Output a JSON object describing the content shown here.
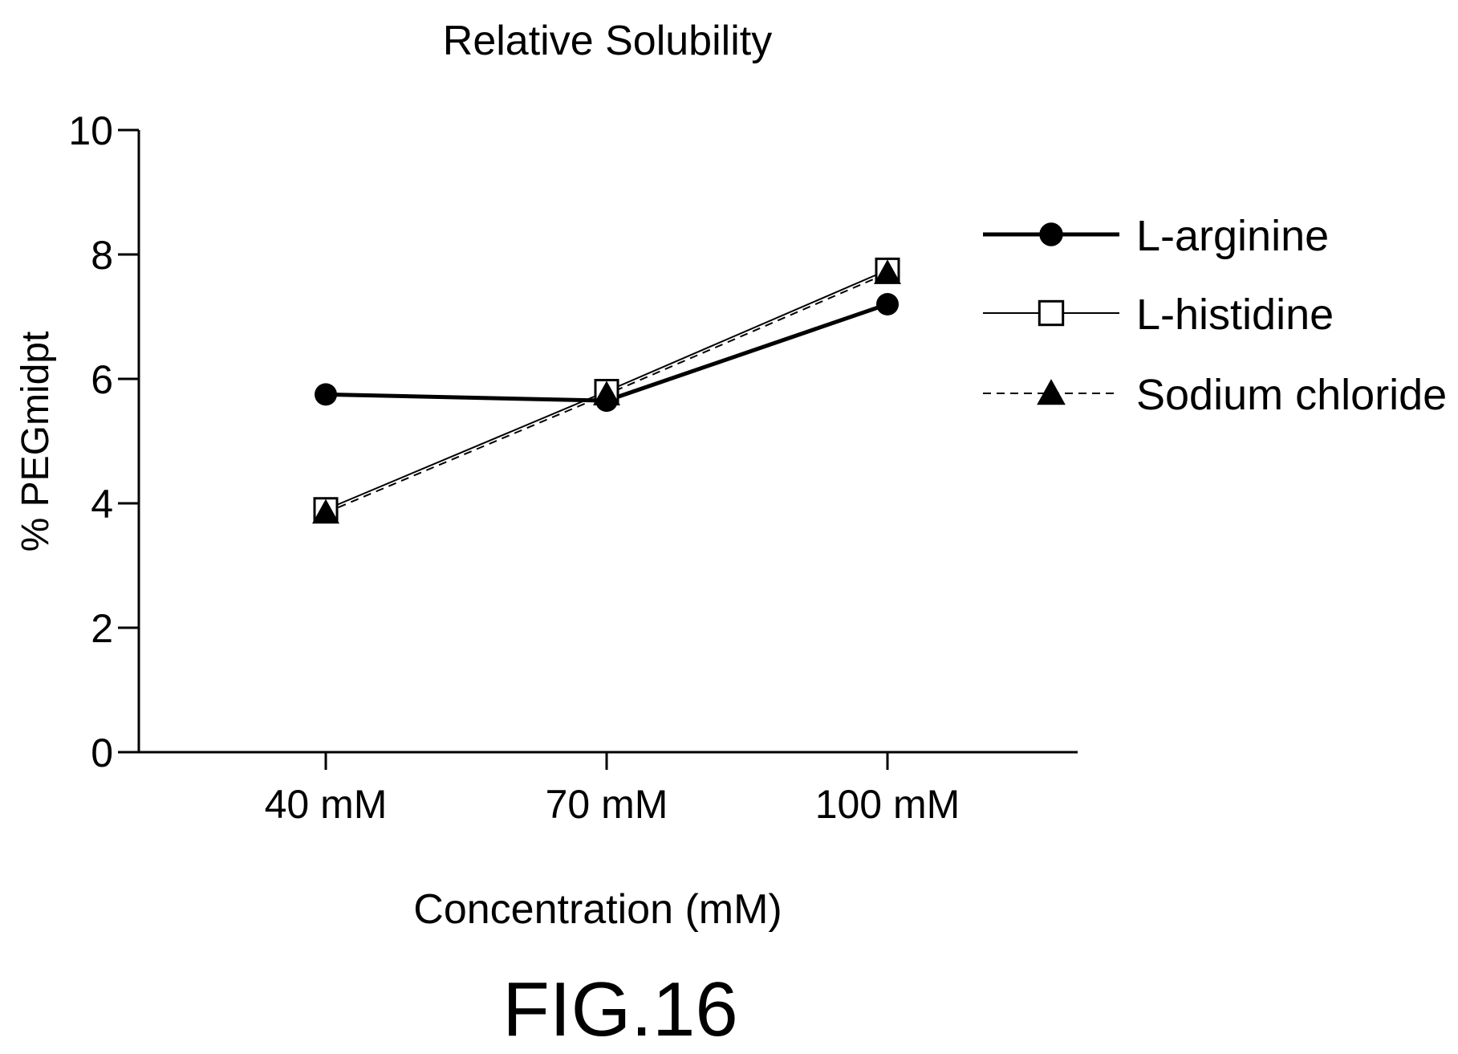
{
  "figure_label": "FIG.16",
  "chart_data": {
    "type": "line",
    "title": "Relative Solubility",
    "xlabel": "Concentration (mM)",
    "ylabel": "% PEGmidpt",
    "categories": [
      "40 mM",
      "70 mM",
      "100 mM"
    ],
    "ylim": [
      0,
      10
    ],
    "yticks": [
      0,
      2,
      4,
      6,
      8,
      10
    ],
    "grid": false,
    "legend_position": "right",
    "series": [
      {
        "name": "L-arginine",
        "values": [
          5.75,
          5.65,
          7.2
        ],
        "marker": "filled-circle",
        "line_style": "solid-thick",
        "color": "#000000"
      },
      {
        "name": "L-histidine",
        "values": [
          3.9,
          5.8,
          7.75
        ],
        "marker": "open-square",
        "line_style": "solid-thin",
        "color": "#000000"
      },
      {
        "name": "Sodium chloride",
        "values": [
          3.85,
          5.75,
          7.7
        ],
        "marker": "filled-triangle",
        "line_style": "dashed",
        "color": "#000000"
      }
    ]
  }
}
